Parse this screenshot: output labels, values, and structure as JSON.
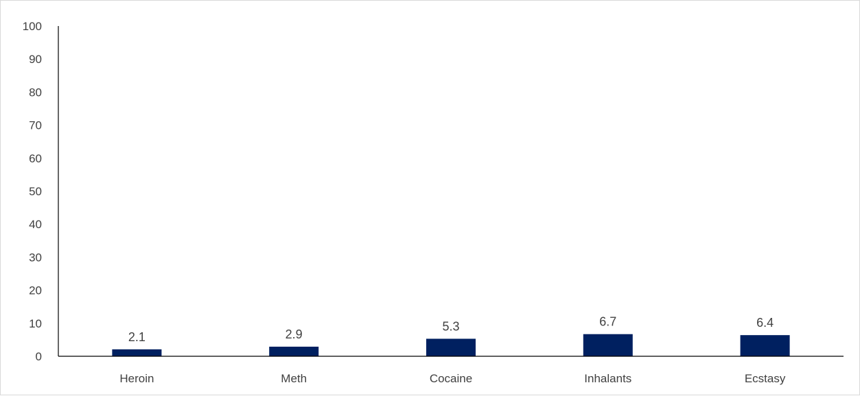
{
  "chart_data": {
    "type": "bar",
    "title": "",
    "xlabel": "",
    "ylabel": "",
    "categories": [
      "Heroin",
      "Meth",
      "Cocaine",
      "Inhalants",
      "Ecstasy"
    ],
    "values": [
      2.1,
      2.9,
      5.3,
      6.7,
      6.4
    ],
    "value_labels": [
      "2.1",
      "2.9",
      "5.3",
      "6.7",
      "6.4"
    ],
    "ylim": [
      0,
      100
    ],
    "yticks": [
      0,
      10,
      20,
      30,
      40,
      50,
      60,
      70,
      80,
      90,
      100
    ],
    "grid": false,
    "legend": "none",
    "bar_color": "#002060"
  }
}
